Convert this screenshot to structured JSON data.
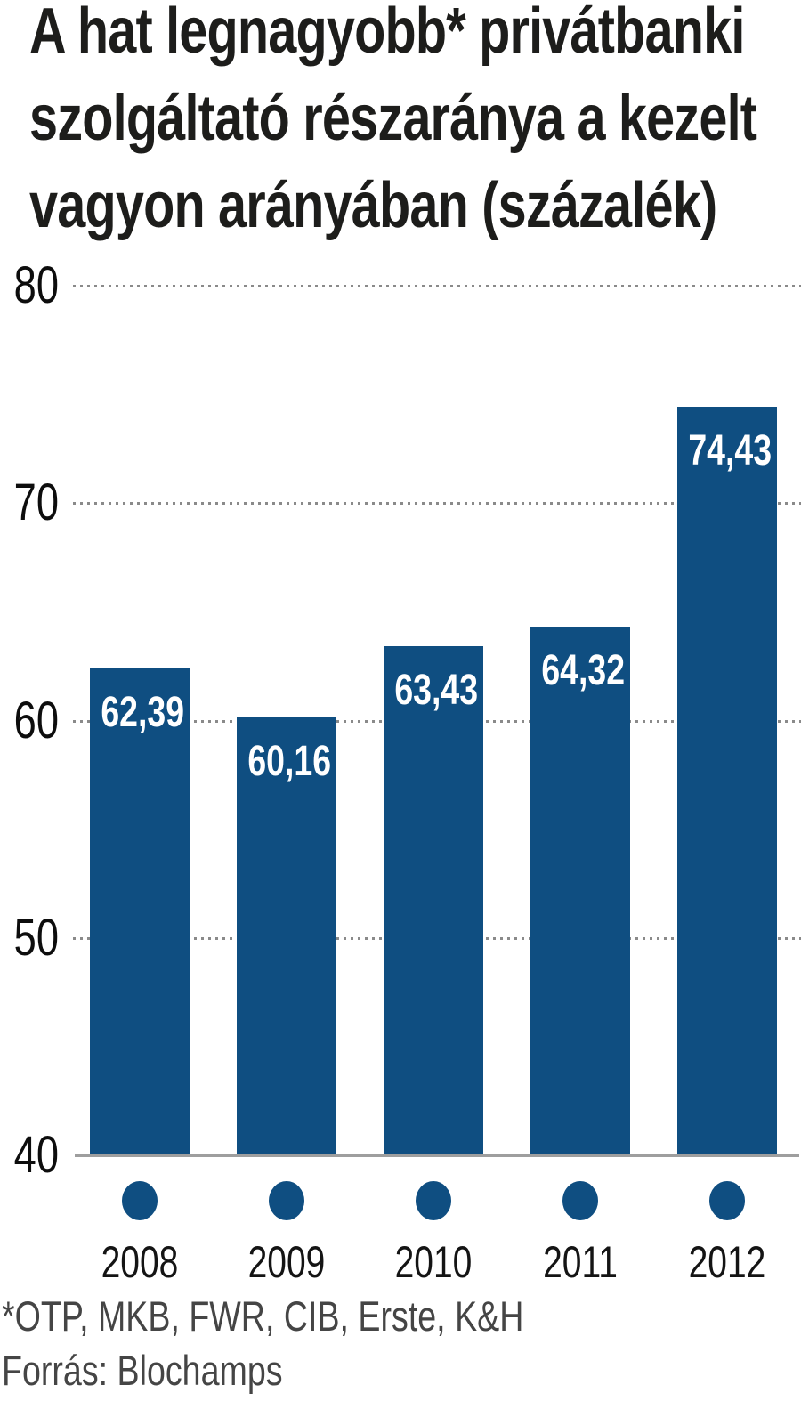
{
  "title": {
    "lines": [
      "A hat legnagyobb* privátbanki",
      "szolgáltató részaránya a kezelt",
      "vagyon arányában (százalék)"
    ]
  },
  "footnotes": {
    "asterisk_note": "*OTP, MKB, FWR, CIB, Erste, K&H",
    "source": "Forrás: Blochamps"
  },
  "colors": {
    "bar": "#0f4e81",
    "dot": "#0f4e81",
    "gridline": "#8a8a8a",
    "baseline": "#9e9e9e",
    "title_text": "#1d1d1b",
    "axis_text": "#0d0d0d",
    "value_label_text": "#ffffff",
    "footnote_text": "#454545",
    "background": "#ffffff"
  },
  "chart_data": {
    "type": "bar",
    "title": "A hat legnagyobb* privátbanki szolgáltató részaránya a kezelt vagyon arányában (százalék)",
    "categories": [
      "2008",
      "2009",
      "2010",
      "2011",
      "2012"
    ],
    "values": [
      62.39,
      60.16,
      63.43,
      64.32,
      74.43
    ],
    "value_labels": [
      "62,39",
      "60,16",
      "63,43",
      "64,32",
      "74,43"
    ],
    "xlabel": "",
    "ylabel": "",
    "unit": "százalék",
    "ylim": [
      40,
      80
    ],
    "yticks": [
      80,
      70,
      60,
      50,
      40
    ],
    "grid": "dotted horizontal gridlines at 50/60/70/80, solid gray baseline at 40",
    "legend": false,
    "footnote": "*OTP, MKB, FWR, CIB, Erste, K&H",
    "source": "Forrás: Blochamps"
  }
}
